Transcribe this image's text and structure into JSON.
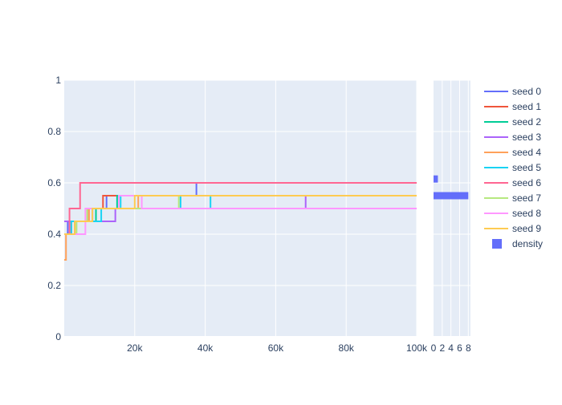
{
  "chart_data": [
    {
      "type": "line",
      "line_shape": "step",
      "xlim": [
        0,
        100000
      ],
      "ylim": [
        0,
        1
      ],
      "x_ticks": [
        20000,
        40000,
        60000,
        80000,
        100000
      ],
      "x_tick_labels": [
        "20k",
        "40k",
        "60k",
        "80k",
        "100k"
      ],
      "y_ticks": [
        0,
        0.2,
        0.4,
        0.6,
        0.8,
        1
      ],
      "y_tick_labels": [
        "0",
        "0.2",
        "0.4",
        "0.6",
        "0.8",
        "1"
      ],
      "grid": true,
      "legend_position": "right",
      "series": [
        {
          "name": "seed 0",
          "color": "#636efa",
          "points": [
            [
              0,
              0.4
            ],
            [
              1000,
              0.45
            ],
            [
              8000,
              0.5
            ],
            [
              12000,
              0.55
            ],
            [
              37500,
              0.6
            ],
            [
              100000,
              0.6
            ]
          ]
        },
        {
          "name": "seed 1",
          "color": "#EF553B",
          "points": [
            [
              0,
              0.4
            ],
            [
              2000,
              0.45
            ],
            [
              7000,
              0.5
            ],
            [
              11000,
              0.55
            ],
            [
              100000,
              0.55
            ]
          ]
        },
        {
          "name": "seed 2",
          "color": "#00cc96",
          "points": [
            [
              0,
              0.4
            ],
            [
              3000,
              0.45
            ],
            [
              9000,
              0.5
            ],
            [
              15000,
              0.55
            ],
            [
              100000,
              0.55
            ]
          ]
        },
        {
          "name": "seed 3",
          "color": "#ab63fa",
          "points": [
            [
              0,
              0.45
            ],
            [
              8000,
              0.45
            ],
            [
              14500,
              0.5
            ],
            [
              68500,
              0.55
            ],
            [
              100000,
              0.55
            ]
          ]
        },
        {
          "name": "seed 4",
          "color": "#FFA15A",
          "points": [
            [
              0,
              0.3
            ],
            [
              500,
              0.4
            ],
            [
              3000,
              0.45
            ],
            [
              7000,
              0.5
            ],
            [
              21000,
              0.55
            ],
            [
              100000,
              0.55
            ]
          ]
        },
        {
          "name": "seed 5",
          "color": "#19d3f3",
          "points": [
            [
              0,
              0.4
            ],
            [
              2000,
              0.45
            ],
            [
              10500,
              0.5
            ],
            [
              16000,
              0.55
            ],
            [
              33000,
              0.5
            ],
            [
              41500,
              0.55
            ],
            [
              100000,
              0.55
            ]
          ]
        },
        {
          "name": "seed 6",
          "color": "#FF6692",
          "points": [
            [
              0,
              0.4
            ],
            [
              1500,
              0.5
            ],
            [
              4500,
              0.6
            ],
            [
              100000,
              0.6
            ]
          ]
        },
        {
          "name": "seed 7",
          "color": "#B6E880",
          "points": [
            [
              0,
              0.4
            ],
            [
              3500,
              0.45
            ],
            [
              6500,
              0.5
            ],
            [
              32500,
              0.55
            ],
            [
              100000,
              0.55
            ]
          ]
        },
        {
          "name": "seed 8",
          "color": "#FF97FF",
          "points": [
            [
              0,
              0.4
            ],
            [
              6000,
              0.5
            ],
            [
              15500,
              0.55
            ],
            [
              22000,
              0.5
            ],
            [
              100000,
              0.5
            ]
          ]
        },
        {
          "name": "seed 9",
          "color": "#FECB52",
          "points": [
            [
              0,
              0.4
            ],
            [
              1000,
              0.4
            ],
            [
              3000,
              0.45
            ],
            [
              8000,
              0.5
            ],
            [
              20000,
              0.55
            ],
            [
              100000,
              0.55
            ]
          ]
        }
      ]
    },
    {
      "type": "bar",
      "orientation": "horizontal",
      "xlim": [
        0,
        8.5
      ],
      "ylim": [
        0,
        1
      ],
      "x_ticks": [
        0,
        2,
        4,
        6,
        8
      ],
      "x_tick_labels": [
        "0",
        "2",
        "4",
        "6",
        "8"
      ],
      "series": [
        {
          "name": "density",
          "color": "#636efa",
          "bars": [
            {
              "y": 0.55,
              "value": 8.0,
              "height": 0.028
            },
            {
              "y": 0.615,
              "value": 1.0,
              "height": 0.028
            }
          ]
        }
      ]
    }
  ]
}
